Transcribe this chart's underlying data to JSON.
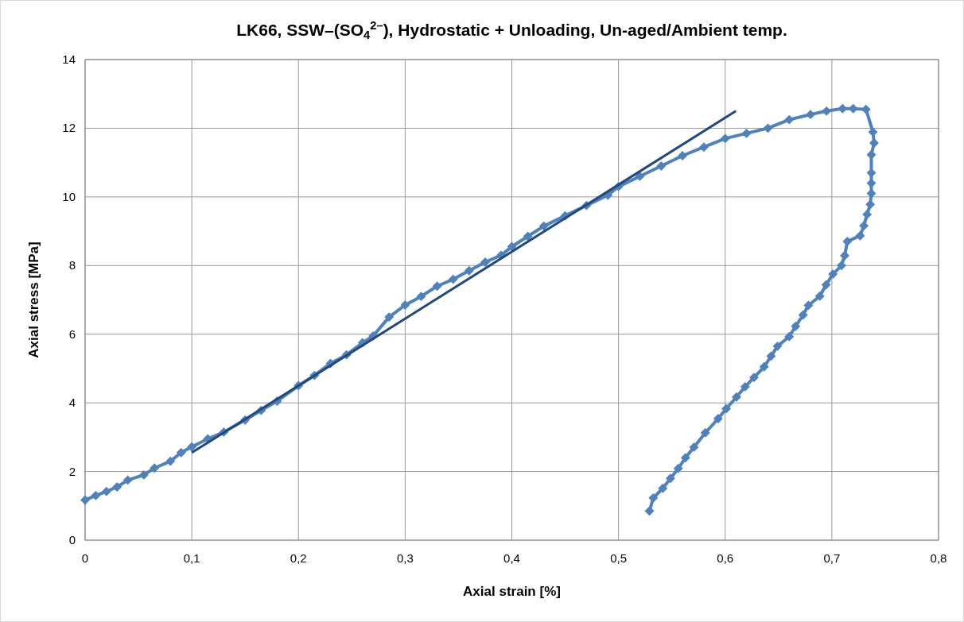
{
  "chart_data": {
    "type": "line",
    "title": "LK66, SSW–(SO$_{4}$$^{2–}$), Hydrostatic + Unloading, Un-aged/Ambient temp.",
    "xlabel": "Axial strain [%]",
    "ylabel": "Axial stress [MPa]",
    "xlim": [
      0,
      0.8
    ],
    "ylim": [
      0,
      14
    ],
    "xticks": [
      0,
      {
        "value": 0.1,
        "label": "0,1"
      },
      {
        "value": 0.2,
        "label": "0,2"
      },
      {
        "value": 0.3,
        "label": "0,3"
      },
      {
        "value": 0.4,
        "label": "0,4"
      },
      {
        "value": 0.5,
        "label": "0,5"
      },
      {
        "value": 0.6,
        "label": "0,6"
      },
      {
        "value": 0.7,
        "label": "0,7"
      },
      {
        "value": 0.8,
        "label": "0,8"
      }
    ],
    "yticks": [
      0,
      2,
      4,
      6,
      8,
      10,
      12,
      14
    ],
    "grid": true,
    "series": [
      {
        "color": "#4f81bd",
        "marker": "diamond",
        "x": [
          0,
          0.01,
          0.02,
          0.03,
          0.04,
          0.055,
          0.065,
          0.08,
          0.09,
          0.1,
          0.115,
          0.13,
          0.15,
          0.165,
          0.18,
          0.2,
          0.215,
          0.23,
          0.245,
          0.26,
          0.27,
          0.285,
          0.3,
          0.315,
          0.33,
          0.345,
          0.36,
          0.375,
          0.39,
          0.4,
          0.415,
          0.43,
          0.45,
          0.47,
          0.49,
          0.5,
          0.52,
          0.54,
          0.56,
          0.58,
          0.6,
          0.62,
          0.64,
          0.66,
          0.68,
          0.695,
          0.71,
          0.72,
          0.732,
          0.7385,
          0.7396,
          0.737,
          0.737,
          0.737,
          0.737,
          0.736,
          0.733,
          0.73,
          0.7265,
          0.7145,
          0.712,
          0.709,
          0.701,
          0.6946,
          0.6887,
          0.678,
          0.673,
          0.666,
          0.66,
          0.649,
          0.643,
          0.6365,
          0.627,
          0.6187,
          0.6106,
          0.601,
          0.5934,
          0.5814,
          0.5707,
          0.5628,
          0.556,
          0.5487,
          0.5415,
          0.5326,
          0.529
        ],
        "values": [
          1.17,
          1.3,
          1.42,
          1.55,
          1.75,
          1.9,
          2.1,
          2.3,
          2.55,
          2.72,
          2.95,
          3.15,
          3.5,
          3.78,
          4.05,
          4.5,
          4.8,
          5.15,
          5.4,
          5.75,
          5.95,
          6.5,
          6.85,
          7.1,
          7.4,
          7.6,
          7.85,
          8.1,
          8.3,
          8.55,
          8.85,
          9.15,
          9.45,
          9.75,
          10.05,
          10.3,
          10.6,
          10.9,
          11.2,
          11.45,
          11.7,
          11.85,
          12.0,
          12.25,
          12.4,
          12.5,
          12.57,
          12.57,
          12.55,
          11.89,
          11.57,
          11.23,
          10.7,
          10.4,
          10.1,
          9.78,
          9.49,
          9.16,
          8.87,
          8.7,
          8.29,
          8.0,
          7.75,
          7.44,
          7.11,
          6.84,
          6.56,
          6.23,
          5.93,
          5.65,
          5.36,
          5.05,
          4.74,
          4.47,
          4.17,
          3.83,
          3.54,
          3.13,
          2.71,
          2.4,
          2.09,
          1.8,
          1.51,
          1.23,
          0.85
        ]
      },
      {
        "color": "#1f497d",
        "marker": "none",
        "x": [
          0.1,
          0.61
        ],
        "values": [
          2.55,
          12.5
        ]
      }
    ]
  }
}
